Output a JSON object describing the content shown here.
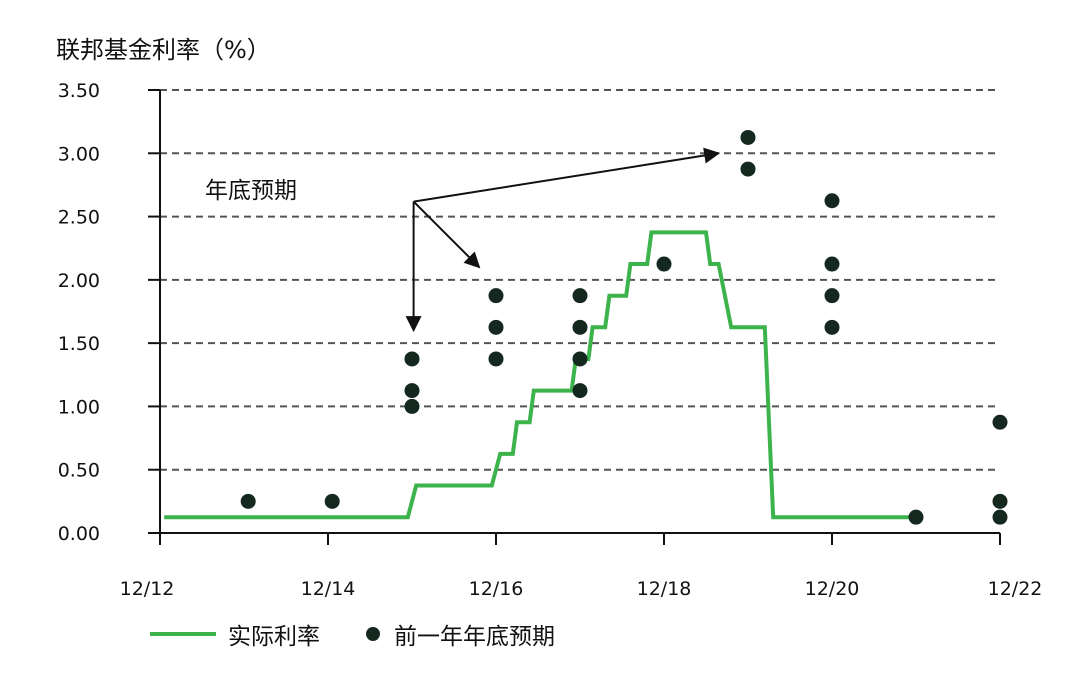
{
  "chart_data": {
    "type": "line",
    "ylabel": "联邦基金利率（%）",
    "ylim": [
      0,
      3.5
    ],
    "yticks": [
      "0.00",
      "0.50",
      "1.00",
      "1.50",
      "2.00",
      "2.50",
      "3.00",
      "3.50"
    ],
    "xlim": [
      0,
      10
    ],
    "xticks": [
      {
        "label": "12/12",
        "x": 0
      },
      {
        "label": "12/14",
        "x": 2
      },
      {
        "label": "12/16",
        "x": 4
      },
      {
        "label": "12/18",
        "x": 6
      },
      {
        "label": "12/20",
        "x": 8
      },
      {
        "label": "12/22",
        "x": 10
      }
    ],
    "grid": "horizontal dashed",
    "legend_position": "bottom",
    "series": [
      {
        "name": "实际利率",
        "color": "#3cb44b",
        "style": "step-line",
        "points": [
          [
            0.05,
            0.125
          ],
          [
            2.95,
            0.125
          ],
          [
            3.05,
            0.375
          ],
          [
            3.95,
            0.375
          ],
          [
            4.05,
            0.625
          ],
          [
            4.2,
            0.625
          ],
          [
            4.25,
            0.875
          ],
          [
            4.4,
            0.875
          ],
          [
            4.45,
            1.125
          ],
          [
            4.9,
            1.125
          ],
          [
            4.95,
            1.375
          ],
          [
            5.1,
            1.375
          ],
          [
            5.15,
            1.625
          ],
          [
            5.3,
            1.625
          ],
          [
            5.35,
            1.875
          ],
          [
            5.55,
            1.875
          ],
          [
            5.6,
            2.125
          ],
          [
            5.8,
            2.125
          ],
          [
            5.85,
            2.375
          ],
          [
            6.5,
            2.375
          ],
          [
            6.55,
            2.125
          ],
          [
            6.65,
            2.125
          ],
          [
            6.8,
            1.625
          ],
          [
            7.2,
            1.625
          ],
          [
            7.3,
            0.125
          ],
          [
            9.0,
            0.125
          ]
        ]
      },
      {
        "name": "前一年年底预期",
        "color": "#15281f",
        "style": "dots",
        "points": [
          [
            1.05,
            0.25
          ],
          [
            2.05,
            0.25
          ],
          [
            3.0,
            1.375
          ],
          [
            3.0,
            1.125
          ],
          [
            3.0,
            1.0
          ],
          [
            4.0,
            1.875
          ],
          [
            4.0,
            1.625
          ],
          [
            4.0,
            1.375
          ],
          [
            5.0,
            1.875
          ],
          [
            5.0,
            1.625
          ],
          [
            5.0,
            1.375
          ],
          [
            5.0,
            1.125
          ],
          [
            6.0,
            2.125
          ],
          [
            7.0,
            3.125
          ],
          [
            7.0,
            2.875
          ],
          [
            8.0,
            2.625
          ],
          [
            8.0,
            2.125
          ],
          [
            8.0,
            1.875
          ],
          [
            8.0,
            1.625
          ],
          [
            9.0,
            0.125
          ],
          [
            10.0,
            0.875
          ],
          [
            10.0,
            0.25
          ],
          [
            10.0,
            0.125
          ]
        ]
      }
    ],
    "annotation": {
      "text": "年底预期",
      "origin": [
        2.9,
        2.65
      ],
      "arrow_targets": [
        [
          2.9,
          1.6
        ],
        [
          3.8,
          2.1
        ],
        [
          6.65,
          3.0
        ]
      ]
    }
  },
  "legend": {
    "actual_label": "实际利率",
    "expected_label": "前一年年底预期"
  }
}
